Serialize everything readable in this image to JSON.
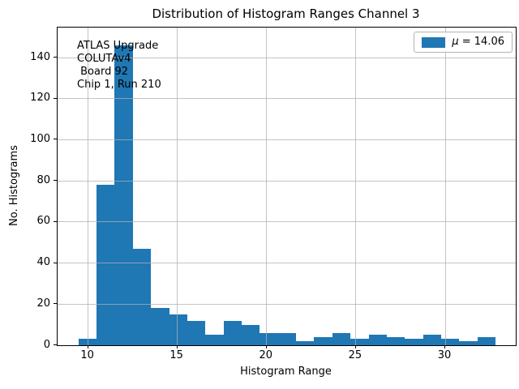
{
  "title": "Distribution of Histogram Ranges Channel 3",
  "xlabel": "Histogram Range",
  "ylabel": "No. Histograms",
  "legend": {
    "symbol": "μ",
    "rest": " = 14.06"
  },
  "annotation_lines": [
    "ATLAS Upgrade",
    "COLUTAv4",
    " Board 92",
    "Chip 1, Run 210"
  ],
  "colors": {
    "bar": "#1f77b4",
    "grid": "#b0b0b0",
    "text": "#000000",
    "legend_border": "#b3b3b3"
  },
  "chart_data": {
    "type": "bar",
    "subtype": "histogram",
    "title": "Distribution of Histogram Ranges Channel 3",
    "xlabel": "Histogram Range",
    "ylabel": "No. Histograms",
    "legend_entries": [
      "μ = 14.06"
    ],
    "legend_position": "upper right",
    "grid": true,
    "bin_start": 9.46,
    "bin_width": 1.0157,
    "values": [
      3,
      78,
      146,
      47,
      18,
      15,
      12,
      5,
      12,
      10,
      6,
      6,
      2,
      4,
      6,
      3,
      5,
      4,
      3,
      5,
      3,
      2,
      4
    ],
    "x_ticks": [
      10,
      15,
      20,
      25,
      30
    ],
    "y_ticks": [
      0,
      20,
      40,
      60,
      80,
      100,
      120,
      140
    ],
    "xlim": [
      8.29,
      33.95
    ],
    "ylim": [
      0,
      154.6
    ]
  }
}
